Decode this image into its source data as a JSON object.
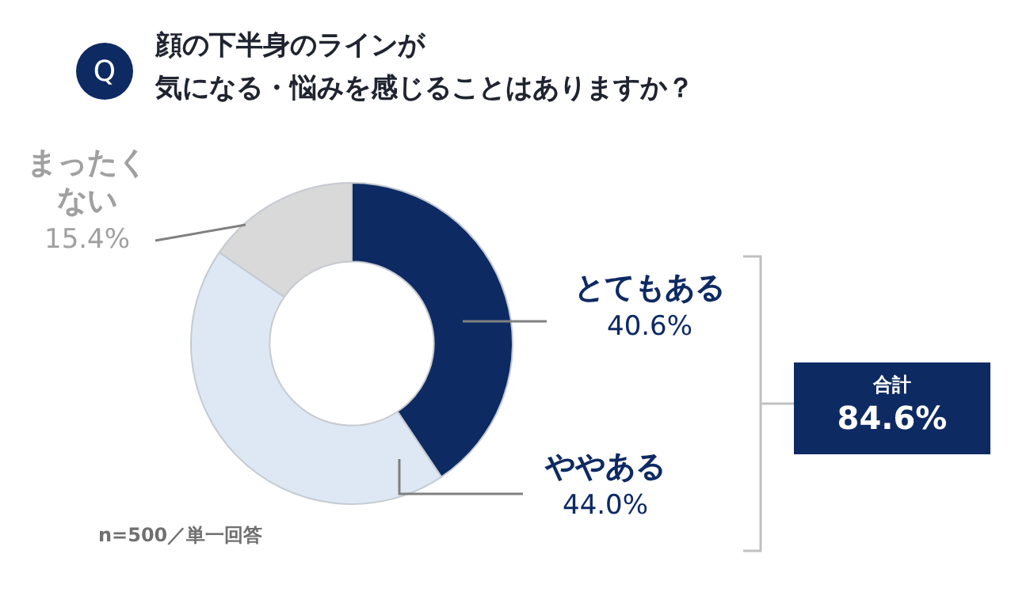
{
  "chart_data": {
    "type": "donut",
    "title": "顔の下半身のラインが",
    "subtitle": "気になる・悩みを感じることはありますか？",
    "categories": [
      "とてもある",
      "ややある",
      "まったくない"
    ],
    "values": [
      40.6,
      44.0,
      15.4
    ],
    "colors": [
      "#0e2a63",
      "#dde8f4",
      "#d9d9d9"
    ],
    "value_labels": [
      "40.6%",
      "44.0%",
      "15.4%"
    ],
    "annotations": [
      "n=500／単一回答",
      "合計",
      "84.6%",
      "Q"
    ],
    "legend": false
  }
}
